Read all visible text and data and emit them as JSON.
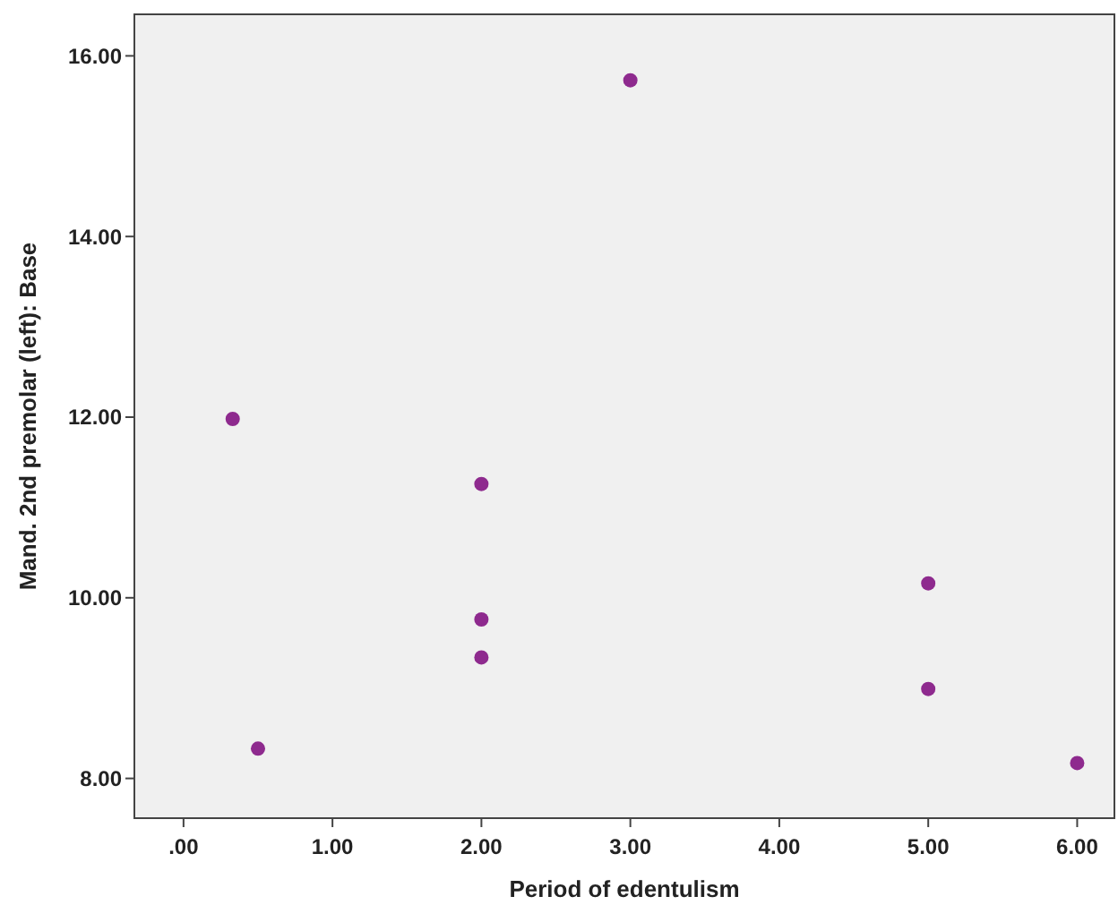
{
  "chart_data": {
    "type": "scatter",
    "xlabel": "Period of edentulism",
    "ylabel": "Mand. 2nd premolar (left): Base",
    "x": [
      0.33,
      0.5,
      2,
      2,
      2,
      3,
      5,
      5,
      6
    ],
    "values": [
      11.98,
      8.33,
      11.26,
      9.76,
      9.34,
      15.73,
      10.16,
      8.99,
      8.17
    ],
    "color": "#8e2a8e",
    "marker": "circle",
    "xlim": [
      -0.33,
      6.25
    ],
    "ylim": [
      7.56,
      16.46
    ],
    "xticks": [
      {
        "value": 0,
        "label": ".00"
      },
      {
        "value": 1,
        "label": "1.00"
      },
      {
        "value": 2,
        "label": "2.00"
      },
      {
        "value": 3,
        "label": "3.00"
      },
      {
        "value": 4,
        "label": "4.00"
      },
      {
        "value": 5,
        "label": "5.00"
      },
      {
        "value": 6,
        "label": "6.00"
      }
    ],
    "yticks": [
      {
        "value": 8,
        "label": "8.00"
      },
      {
        "value": 10,
        "label": "10.00"
      },
      {
        "value": 12,
        "label": "12.00"
      },
      {
        "value": 14,
        "label": "14.00"
      },
      {
        "value": 16,
        "label": "16.00"
      }
    ]
  }
}
